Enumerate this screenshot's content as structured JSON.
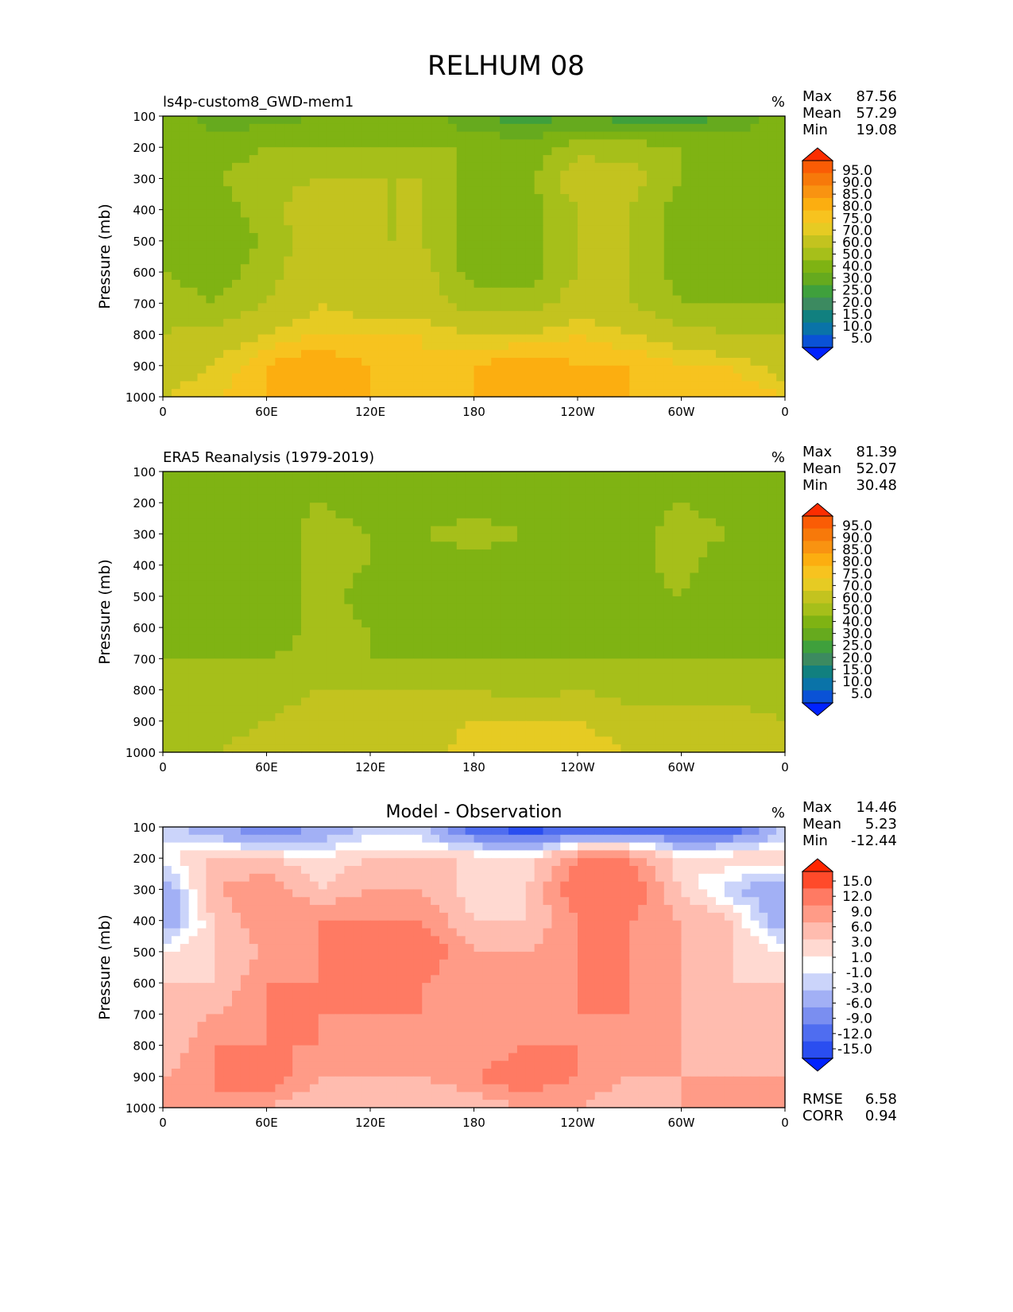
{
  "title": "RELHUM 08",
  "colors": {
    "rh_levels": [
      "#0022ff",
      "#0a52d6",
      "#0a73a8",
      "#11807f",
      "#3c8a60",
      "#3fa03c",
      "#66aa1e",
      "#7fb313",
      "#a6bf1a",
      "#c3c31f",
      "#e6cb23",
      "#f7c31f",
      "#fcae10",
      "#f99311",
      "#f7790a",
      "#fa5c05",
      "#fc2d00"
    ],
    "diff_levels": [
      "#0022ff",
      "#2a4ef0",
      "#4f6df0",
      "#7a8ef0",
      "#a2b0f5",
      "#cbd4fa",
      "#ffffff",
      "#ffd9d1",
      "#ffbcaf",
      "#ff9b87",
      "#ff7a63",
      "#ff4a2a",
      "#ff2600"
    ]
  },
  "panels": [
    {
      "id": "model",
      "subtitle": "ls4p-custom8_GWD-mem1",
      "centered_title": "",
      "units": "%",
      "ylabel": "Pressure (mb)",
      "stats": [
        {
          "label": "Max",
          "value": "87.56"
        },
        {
          "label": "Mean",
          "value": "57.29"
        },
        {
          "label": "Min",
          "value": "19.08"
        }
      ],
      "bottom_stats": [],
      "colorbar": {
        "labels": [
          "95.0",
          "90.0",
          "85.0",
          "80.0",
          "75.0",
          "70.0",
          "60.0",
          "50.0",
          "40.0",
          "30.0",
          "25.0",
          "20.0",
          "15.0",
          "10.0",
          "5.0"
        ],
        "palette": "rh_levels"
      },
      "field": "model"
    },
    {
      "id": "obs",
      "subtitle": "ERA5 Reanalysis (1979-2019)",
      "centered_title": "",
      "units": "%",
      "ylabel": "Pressure (mb)",
      "stats": [
        {
          "label": "Max",
          "value": "81.39"
        },
        {
          "label": "Mean",
          "value": "52.07"
        },
        {
          "label": "Min",
          "value": "30.48"
        }
      ],
      "bottom_stats": [],
      "colorbar": {
        "labels": [
          "95.0",
          "90.0",
          "85.0",
          "80.0",
          "75.0",
          "70.0",
          "60.0",
          "50.0",
          "40.0",
          "30.0",
          "25.0",
          "20.0",
          "15.0",
          "10.0",
          "5.0"
        ],
        "palette": "rh_levels"
      },
      "field": "obs"
    },
    {
      "id": "diff",
      "subtitle": "",
      "centered_title": "Model - Observation",
      "units": "%",
      "ylabel": "Pressure (mb)",
      "stats": [
        {
          "label": "Max",
          "value": "14.46"
        },
        {
          "label": "Mean",
          "value": "5.23"
        },
        {
          "label": "Min",
          "value": "-12.44"
        }
      ],
      "bottom_stats": [
        {
          "label": "RMSE",
          "value": "6.58"
        },
        {
          "label": "CORR",
          "value": "0.94"
        }
      ],
      "colorbar": {
        "labels": [
          "15.0",
          "12.0",
          "9.0",
          "6.0",
          "3.0",
          "1.0",
          "-1.0",
          "-3.0",
          "-6.0",
          "-9.0",
          "-12.0",
          "-15.0"
        ],
        "palette": "diff_levels"
      },
      "field": "diff"
    }
  ],
  "chart_data": {
    "type": "heatmap",
    "title": "RELHUM 08",
    "xlabel": "",
    "ylabel": "Pressure (mb)",
    "x_ticks": [
      "0",
      "60E",
      "120E",
      "180",
      "120W",
      "60W",
      "0"
    ],
    "y_ticks": [
      "100",
      "200",
      "300",
      "400",
      "500",
      "600",
      "700",
      "800",
      "900",
      "1000"
    ],
    "xlim": [
      0,
      360
    ],
    "ylim": [
      1000,
      100
    ],
    "pressure_levels": [
      100,
      200,
      300,
      400,
      500,
      600,
      700,
      800,
      900,
      1000
    ],
    "longitudes": [
      0,
      30,
      60,
      90,
      120,
      150,
      180,
      210,
      240,
      270,
      300,
      330,
      360
    ],
    "series": [
      {
        "name": "ls4p-custom8_GWD-mem1",
        "units": "%",
        "values": [
          [
            45,
            35,
            35,
            40,
            45,
            45,
            30,
            25,
            30,
            25,
            25,
            30,
            45
          ],
          [
            50,
            45,
            50,
            50,
            50,
            50,
            50,
            45,
            55,
            55,
            50,
            50,
            50
          ],
          [
            45,
            50,
            55,
            60,
            60,
            60,
            45,
            45,
            70,
            65,
            50,
            45,
            45
          ],
          [
            40,
            45,
            55,
            70,
            60,
            60,
            45,
            45,
            60,
            60,
            45,
            45,
            40
          ],
          [
            45,
            45,
            50,
            70,
            60,
            60,
            45,
            45,
            60,
            60,
            45,
            45,
            45
          ],
          [
            50,
            45,
            55,
            70,
            65,
            65,
            45,
            45,
            60,
            60,
            45,
            45,
            50
          ],
          [
            55,
            50,
            60,
            70,
            65,
            65,
            55,
            55,
            65,
            60,
            50,
            50,
            50
          ],
          [
            60,
            65,
            70,
            75,
            75,
            75,
            70,
            70,
            75,
            70,
            65,
            60,
            60
          ],
          [
            65,
            70,
            80,
            85,
            80,
            75,
            80,
            85,
            80,
            80,
            75,
            75,
            65
          ],
          [
            70,
            75,
            80,
            80,
            80,
            75,
            80,
            80,
            80,
            80,
            80,
            80,
            75
          ]
        ]
      },
      {
        "name": "ERA5 Reanalysis (1979-2019)",
        "units": "%",
        "values": [
          [
            45,
            45,
            50,
            50,
            50,
            50,
            50,
            50,
            50,
            45,
            50,
            50,
            45
          ],
          [
            50,
            40,
            45,
            50,
            45,
            45,
            45,
            45,
            40,
            45,
            50,
            45,
            45
          ],
          [
            45,
            40,
            40,
            55,
            50,
            50,
            55,
            50,
            45,
            45,
            55,
            50,
            45
          ],
          [
            40,
            40,
            40,
            55,
            50,
            45,
            45,
            40,
            40,
            45,
            55,
            40,
            40
          ],
          [
            40,
            40,
            40,
            55,
            45,
            45,
            45,
            40,
            40,
            45,
            50,
            40,
            40
          ],
          [
            45,
            45,
            40,
            55,
            50,
            45,
            45,
            40,
            45,
            45,
            45,
            40,
            45
          ],
          [
            50,
            50,
            50,
            55,
            50,
            50,
            50,
            50,
            50,
            50,
            50,
            50,
            50
          ],
          [
            55,
            55,
            55,
            60,
            60,
            60,
            60,
            55,
            60,
            55,
            55,
            55,
            55
          ],
          [
            55,
            55,
            60,
            65,
            65,
            65,
            70,
            70,
            70,
            65,
            65,
            65,
            60
          ],
          [
            60,
            60,
            65,
            70,
            65,
            65,
            75,
            75,
            75,
            70,
            70,
            70,
            65
          ]
        ]
      },
      {
        "name": "Model - Observation",
        "units": "%",
        "values": [
          [
            -2,
            -6,
            -9,
            -6,
            -3,
            -3,
            -12,
            -15,
            -12,
            -12,
            -12,
            -12,
            -3
          ],
          [
            1,
            3,
            3,
            1,
            3,
            3,
            3,
            1,
            9,
            9,
            1,
            3,
            3
          ],
          [
            -6,
            6,
            9,
            3,
            6,
            6,
            1,
            3,
            12,
            12,
            3,
            -3,
            -6
          ],
          [
            -6,
            3,
            9,
            9,
            9,
            9,
            3,
            3,
            9,
            9,
            6,
            3,
            -6
          ],
          [
            1,
            3,
            6,
            9,
            12,
            12,
            6,
            6,
            9,
            9,
            6,
            3,
            1
          ],
          [
            3,
            3,
            9,
            9,
            12,
            9,
            6,
            6,
            9,
            9,
            6,
            3,
            3
          ],
          [
            3,
            6,
            9,
            9,
            9,
            9,
            6,
            6,
            9,
            9,
            6,
            3,
            3
          ],
          [
            3,
            9,
            9,
            9,
            6,
            6,
            6,
            9,
            9,
            6,
            6,
            3,
            3
          ],
          [
            6,
            9,
            12,
            6,
            6,
            6,
            9,
            12,
            9,
            6,
            6,
            6,
            6
          ],
          [
            9,
            9,
            6,
            3,
            3,
            3,
            3,
            6,
            6,
            3,
            6,
            6,
            9
          ]
        ]
      }
    ]
  }
}
